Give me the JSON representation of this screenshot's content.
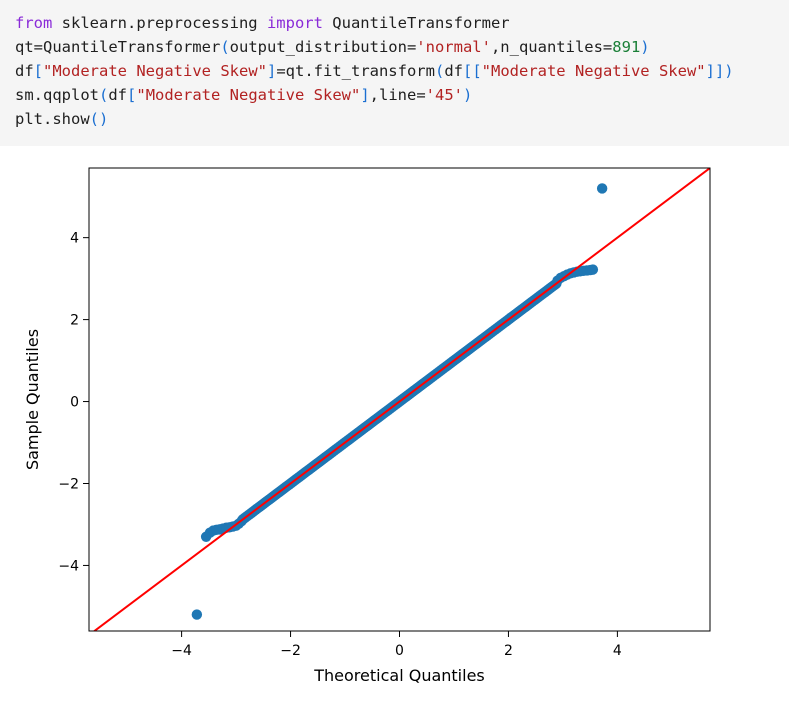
{
  "code": {
    "lines": [
      [
        {
          "t": "from",
          "c": "kw"
        },
        {
          "t": " sklearn.preprocessing ",
          "c": ""
        },
        {
          "t": "import",
          "c": "kw"
        },
        {
          "t": " QuantileTransformer",
          "c": ""
        }
      ],
      [
        {
          "t": "qt=QuantileTransformer",
          "c": ""
        },
        {
          "t": "(",
          "c": "par"
        },
        {
          "t": "output_distribution=",
          "c": ""
        },
        {
          "t": "'normal'",
          "c": "str"
        },
        {
          "t": ",n_quantiles=",
          "c": ""
        },
        {
          "t": "891",
          "c": "num"
        },
        {
          "t": ")",
          "c": "par"
        }
      ],
      [
        {
          "t": "df",
          "c": ""
        },
        {
          "t": "[",
          "c": "par"
        },
        {
          "t": "\"Moderate Negative Skew\"",
          "c": "str"
        },
        {
          "t": "]",
          "c": "par"
        },
        {
          "t": "=qt.fit_transform",
          "c": ""
        },
        {
          "t": "(",
          "c": "par"
        },
        {
          "t": "df",
          "c": ""
        },
        {
          "t": "[[",
          "c": "par"
        },
        {
          "t": "\"Moderate Negative Skew\"",
          "c": "str"
        },
        {
          "t": "]])",
          "c": "par"
        }
      ],
      [
        {
          "t": "sm.qqplot",
          "c": ""
        },
        {
          "t": "(",
          "c": "par"
        },
        {
          "t": "df",
          "c": ""
        },
        {
          "t": "[",
          "c": "par"
        },
        {
          "t": "\"Moderate Negative Skew\"",
          "c": "str"
        },
        {
          "t": "]",
          "c": "par"
        },
        {
          "t": ",line=",
          "c": ""
        },
        {
          "t": "'45'",
          "c": "str"
        },
        {
          "t": ")",
          "c": "par"
        }
      ],
      [
        {
          "t": "plt.show",
          "c": ""
        },
        {
          "t": "()",
          "c": "par"
        }
      ]
    ]
  },
  "chart_data": {
    "type": "scatter",
    "title": "",
    "xlabel": "Theoretical Quantiles",
    "ylabel": "Sample Quantiles",
    "xlim": [
      -5.7,
      5.7
    ],
    "ylim": [
      -5.6,
      5.7
    ],
    "xticks": [
      -4,
      -2,
      0,
      2,
      4
    ],
    "yticks": [
      -4,
      -2,
      0,
      2,
      4
    ],
    "tick_labels": [
      "−4",
      "−2",
      "0",
      "2",
      "4"
    ],
    "grid": false,
    "marker_color": "#1f77b4",
    "line_color": "#ff0000",
    "reference_line": "45-degree (y = x)",
    "series": [
      {
        "kind": "points",
        "points": [
          [
            -3.72,
            -5.2
          ],
          [
            -3.55,
            -3.3
          ],
          [
            -3.48,
            -3.2
          ],
          [
            -3.42,
            -3.15
          ],
          [
            -3.36,
            -3.13
          ],
          [
            -3.3,
            -3.12
          ],
          [
            -3.24,
            -3.1
          ],
          [
            -3.18,
            -3.08
          ],
          [
            -3.12,
            -3.07
          ],
          [
            -3.06,
            -3.05
          ],
          [
            -3.0,
            -3.03
          ],
          [
            -2.95,
            -2.98
          ],
          [
            -2.9,
            -2.92
          ],
          [
            2.9,
            2.95
          ],
          [
            2.96,
            3.02
          ],
          [
            3.02,
            3.06
          ],
          [
            3.08,
            3.1
          ],
          [
            3.14,
            3.13
          ],
          [
            3.2,
            3.15
          ],
          [
            3.26,
            3.17
          ],
          [
            3.32,
            3.18
          ],
          [
            3.38,
            3.19
          ],
          [
            3.44,
            3.2
          ],
          [
            3.5,
            3.21
          ],
          [
            3.55,
            3.22
          ],
          [
            3.72,
            5.2
          ]
        ]
      },
      {
        "kind": "dense-diagonal",
        "x_from": -2.88,
        "x_to": 2.88,
        "step": 0.018
      }
    ]
  }
}
